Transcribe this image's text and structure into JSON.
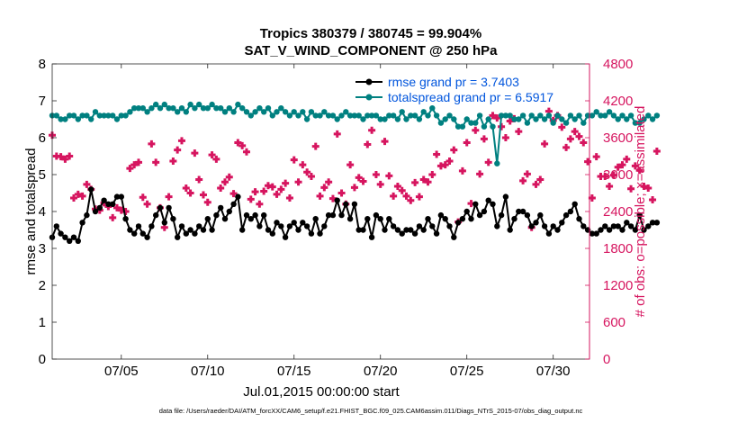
{
  "colors": {
    "rmse": "#000000",
    "totalspread": "#008080",
    "obs": "#d6155f",
    "legend_text": "#0055dd",
    "axis": "#262626"
  },
  "chart_data": {
    "type": "line",
    "title_line1": "Tropics 380379 / 380745 = 99.904%",
    "title_line2": "SAT_V_WIND_COMPONENT @ 250 hPa",
    "xlabel": "Jul.01,2015 00:00:00 start",
    "ylabel_left": "rmse and totalspread",
    "ylabel_right": "# of obs: o=possible; ×=assimilated",
    "xlim": [
      1,
      32.1
    ],
    "ylim_left": [
      0,
      8
    ],
    "ylim_right": [
      0,
      4800
    ],
    "x_ticks": [
      {
        "value": 5,
        "label": "07/05"
      },
      {
        "value": 10,
        "label": "07/10"
      },
      {
        "value": 15,
        "label": "07/15"
      },
      {
        "value": 20,
        "label": "07/20"
      },
      {
        "value": 25,
        "label": "07/25"
      },
      {
        "value": 30,
        "label": "07/30"
      }
    ],
    "y_ticks_left": [
      "0",
      "1",
      "2",
      "3",
      "4",
      "5",
      "6",
      "7",
      "8"
    ],
    "y_ticks_right": [
      "0",
      "600",
      "1200",
      "1800",
      "2400",
      "3000",
      "3600",
      "4200",
      "4800"
    ],
    "legend": [
      "rmse grand pr = 3.7403",
      "totalspread grand pr = 6.5917"
    ],
    "x_start": 1.0,
    "x_step": 0.25,
    "series": [
      {
        "name": "rmse",
        "axis": "left",
        "values": [
          3.3,
          3.6,
          3.4,
          3.3,
          3.2,
          3.3,
          3.2,
          3.7,
          3.9,
          4.6,
          4.0,
          4.1,
          4.3,
          4.2,
          4.2,
          4.4,
          4.4,
          3.8,
          3.5,
          3.4,
          3.6,
          3.4,
          3.3,
          3.6,
          3.9,
          4.1,
          3.7,
          4.1,
          3.8,
          3.3,
          3.6,
          3.4,
          3.5,
          3.4,
          3.6,
          3.5,
          3.8,
          3.5,
          3.9,
          4.1,
          3.8,
          4.0,
          4.2,
          4.4,
          3.5,
          3.9,
          3.8,
          3.9,
          3.6,
          3.9,
          3.5,
          3.4,
          3.7,
          3.6,
          3.3,
          3.6,
          3.7,
          3.5,
          3.7,
          3.6,
          3.4,
          3.8,
          3.4,
          3.6,
          3.9,
          3.9,
          4.3,
          3.9,
          4.2,
          3.8,
          4.2,
          3.5,
          3.5,
          3.8,
          3.3,
          3.9,
          3.8,
          3.5,
          3.8,
          3.6,
          3.5,
          3.4,
          3.5,
          3.5,
          3.4,
          3.6,
          3.5,
          3.8,
          3.6,
          3.4,
          3.9,
          3.8,
          3.6,
          3.3,
          3.7,
          3.8,
          4.0,
          3.8,
          4.2,
          3.9,
          4.0,
          4.3,
          4.2,
          3.6,
          3.9,
          4.4,
          3.5,
          3.8,
          4.0,
          4.0,
          3.9,
          3.6,
          3.7,
          3.9,
          3.6,
          3.4,
          3.6,
          3.5,
          3.7,
          3.9,
          4.0,
          4.2,
          3.8,
          3.6,
          3.5,
          3.4,
          3.4,
          3.5,
          3.6,
          3.5,
          3.6,
          3.6,
          3.5,
          3.7,
          3.6,
          3.5,
          3.9,
          3.5,
          3.6,
          3.7,
          3.7
        ]
      },
      {
        "name": "totalspread",
        "axis": "left",
        "values": [
          6.6,
          6.6,
          6.5,
          6.5,
          6.6,
          6.6,
          6.5,
          6.6,
          6.6,
          6.5,
          6.7,
          6.6,
          6.6,
          6.6,
          6.6,
          6.5,
          6.6,
          6.6,
          6.7,
          6.8,
          6.8,
          6.8,
          6.7,
          6.8,
          6.9,
          6.8,
          6.9,
          6.8,
          6.8,
          6.7,
          6.8,
          6.7,
          6.9,
          6.8,
          6.9,
          6.8,
          6.8,
          6.9,
          6.8,
          6.8,
          6.7,
          6.8,
          6.7,
          6.9,
          6.8,
          6.7,
          6.6,
          6.7,
          6.8,
          6.7,
          6.8,
          6.6,
          6.7,
          6.8,
          6.7,
          6.6,
          6.7,
          6.6,
          6.7,
          6.5,
          6.7,
          6.6,
          6.6,
          6.7,
          6.6,
          6.6,
          6.5,
          6.6,
          6.7,
          6.6,
          6.6,
          6.6,
          6.5,
          6.6,
          6.6,
          6.6,
          6.5,
          6.5,
          6.6,
          6.6,
          6.5,
          6.7,
          6.5,
          6.6,
          6.6,
          6.5,
          6.7,
          6.6,
          6.8,
          6.6,
          6.4,
          6.5,
          6.6,
          6.5,
          6.3,
          6.3,
          6.5,
          6.4,
          6.4,
          6.6,
          6.3,
          6.5,
          6.3,
          5.3,
          6.6,
          6.6,
          6.6,
          6.5,
          6.5,
          6.6,
          6.4,
          6.6,
          6.5,
          6.6,
          6.5,
          6.6,
          6.4,
          6.6,
          6.5,
          6.4,
          6.6,
          6.5,
          6.6,
          6.4,
          6.6,
          6.6,
          6.7,
          6.6,
          6.6,
          6.7,
          6.6,
          6.5,
          6.6,
          6.5,
          6.6,
          6.4,
          6.4,
          6.5,
          6.6,
          6.5,
          6.6
        ]
      },
      {
        "name": "obs_assimilated",
        "axis": "right",
        "values": [
          3640,
          3300,
          3290,
          3250,
          3300,
          2620,
          2680,
          2650,
          2840,
          2760,
          2440,
          2420,
          2540,
          2480,
          2300,
          2460,
          2420,
          2400,
          3100,
          3160,
          3200,
          2630,
          2520,
          3500,
          3200,
          2460,
          2140,
          2640,
          3220,
          3400,
          3550,
          2780,
          2700,
          3350,
          2920,
          2670,
          2550,
          3320,
          3250,
          2780,
          2880,
          2960,
          2690,
          3520,
          3470,
          3370,
          2600,
          2720,
          2520,
          2730,
          2820,
          2800,
          2680,
          2760,
          2860,
          2620,
          3240,
          2880,
          3160,
          3040,
          2970,
          3460,
          2650,
          2790,
          2880,
          2610,
          3660,
          2700,
          2520,
          3160,
          2790,
          2950,
          2890,
          3490,
          3720,
          3000,
          2840,
          3540,
          2980,
          2650,
          2810,
          2740,
          2650,
          2580,
          2870,
          2640,
          2920,
          2880,
          3000,
          3330,
          3140,
          3160,
          3220,
          3400,
          2230,
          3060,
          3520,
          2530,
          3720,
          3010,
          3580,
          3200,
          3960,
          3920,
          3780,
          3600,
          3870,
          3910,
          3700,
          2900,
          3010,
          2140,
          2840,
          2920,
          3500,
          4030,
          3880,
          3960,
          3770,
          3440,
          3580,
          3700,
          3620,
          3520,
          3210,
          2620,
          3290,
          2970,
          2970,
          2810,
          2990,
          3120,
          3160,
          3250,
          2770,
          3140,
          3070,
          2810,
          2780,
          2590,
          3380
        ]
      }
    ]
  },
  "footer": "data file: /Users/raeder/DAI/ATM_forcXX/CAM6_setup/f.e21.FHIST_BGC.f09_025.CAM6assim.011/Diags_NTrS_2015-07/obs_diag_output.nc"
}
